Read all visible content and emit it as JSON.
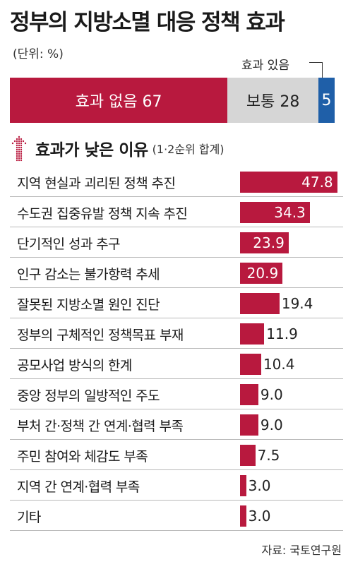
{
  "title": "정부의 지방소멸 대응 정책 효과",
  "unit": "(단위: %)",
  "callout": "효과 있음",
  "section_title": "효과가 낮은 이유",
  "section_sub": "(1·2순위 합계)",
  "source": "자료: 국토연구원",
  "colors": {
    "accent": "#b8193e",
    "neutral": "#d6d6d6",
    "blue": "#1f5fa8",
    "arrow": "#b8193e"
  },
  "icons": {
    "section_marker": "dotted-up-arrow-icon"
  },
  "chart_data": [
    {
      "type": "bar",
      "stacked": true,
      "orientation": "horizontal",
      "series": [
        {
          "name": "효과 없음",
          "value": 67,
          "display": "효과 없음  67",
          "color": "#b8193e"
        },
        {
          "name": "보통",
          "value": 28,
          "display": "보통 28",
          "color": "#d6d6d6"
        },
        {
          "name": "효과 있음",
          "value": 5,
          "display": "5",
          "color": "#1f5fa8"
        }
      ]
    },
    {
      "type": "bar",
      "orientation": "horizontal",
      "title": "효과가 낮은 이유",
      "subtitle": "(1·2순위 합계)",
      "categories": [
        "지역 현실과 괴리된 정책 추진",
        "수도권 집중유발 정책 지속 추진",
        "단기적인 성과 추구",
        "인구 감소는 불가항력 추세",
        "잘못된 지방소멸 원인 진단",
        "정부의 구체적인 정책목표 부재",
        "공모사업 방식의 한계",
        "중앙 정부의 일방적인 주도",
        "부처 간·정책 간 연계·협력 부족",
        "주민 참여와 체감도 부족",
        "지역 간 연계·협력 부족",
        "기타"
      ],
      "values": [
        47.8,
        34.3,
        23.9,
        20.9,
        19.4,
        11.9,
        10.4,
        9.0,
        9.0,
        7.5,
        3.0,
        3.0
      ],
      "labels": [
        "47.8",
        "34.3",
        "23.9",
        "20.9",
        "19.4",
        "11.9",
        "10.4",
        "9.0",
        "9.0",
        "7.5",
        "3.0",
        "3.0"
      ],
      "xlim": [
        0,
        50
      ],
      "grid": false
    }
  ]
}
